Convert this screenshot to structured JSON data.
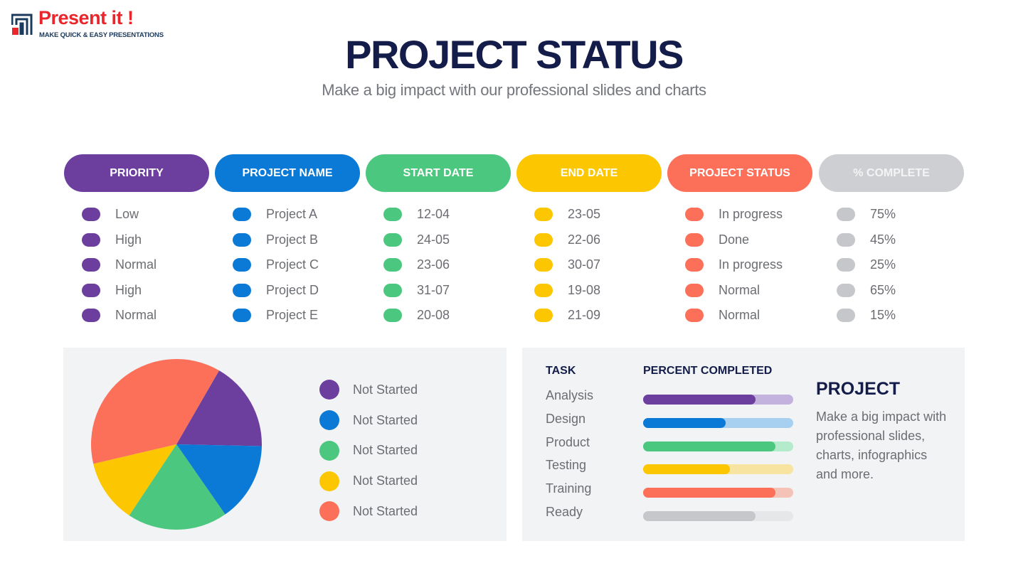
{
  "logo": {
    "title": "Present it !",
    "tagline": "MAKE QUICK & EASY PRESENTATIONS"
  },
  "header": {
    "title": "PROJECT STATUS",
    "subtitle": "Make a big impact with our professional slides and charts"
  },
  "colors": {
    "purple": "#6c3f9f",
    "blue": "#0a7ad6",
    "green": "#4cc77f",
    "yellow": "#fcc700",
    "coral": "#fc705a",
    "gray": "#c5c7ca"
  },
  "table": {
    "columns": [
      {
        "header": "PRIORITY",
        "color": "#6c3f9f",
        "text_color": "#ffffff",
        "items": [
          "Low",
          "High",
          "Normal",
          "High",
          "Normal"
        ]
      },
      {
        "header": "PROJECT NAME",
        "color": "#0a7ad6",
        "text_color": "#ffffff",
        "items": [
          "Project A",
          "Project B",
          "Project C",
          "Project D",
          "Project E"
        ]
      },
      {
        "header": "START DATE",
        "color": "#4cc77f",
        "text_color": "#ffffff",
        "items": [
          "12-04",
          "24-05",
          "23-06",
          "31-07",
          "20-08"
        ]
      },
      {
        "header": "END DATE",
        "color": "#fcc700",
        "text_color": "#ffffff",
        "items": [
          "23-05",
          "22-06",
          "30-07",
          "19-08",
          "21-09"
        ]
      },
      {
        "header": "PROJECT STATUS",
        "color": "#fc705a",
        "text_color": "#ffffff",
        "items": [
          "In progress",
          "Done",
          "In progress",
          "Normal",
          "Normal"
        ]
      },
      {
        "header": "% COMPLETE",
        "color": "#cdcfd2",
        "text_color": "#f4f4f5",
        "items": [
          "75%",
          "45%",
          "25%",
          "65%",
          "15%"
        ]
      }
    ]
  },
  "chart_data": {
    "type": "pie",
    "labels": [
      "Not Started",
      "Not Started",
      "Not Started",
      "Not Started",
      "Not Started"
    ],
    "values": [
      17,
      15,
      19,
      12,
      37
    ],
    "colors": [
      "#6c3f9f",
      "#0a7ad6",
      "#4cc77f",
      "#fcc700",
      "#fc705a"
    ]
  },
  "tasks": {
    "task_header": "TASK",
    "percent_header": "PERCENT COMPLETED",
    "items": [
      {
        "label": "Analysis",
        "percent": 75,
        "fill": "#6c3f9f",
        "track": "#c3b2dd"
      },
      {
        "label": "Design",
        "percent": 55,
        "fill": "#0a7ad6",
        "track": "#a6cff0"
      },
      {
        "label": "Product",
        "percent": 88,
        "fill": "#4cc77f",
        "track": "#b4ebcb"
      },
      {
        "label": "Testing",
        "percent": 58,
        "fill": "#fcc700",
        "track": "#f6e4a0"
      },
      {
        "label": "Training",
        "percent": 88,
        "fill": "#fc705a",
        "track": "#f5c2b8"
      },
      {
        "label": "Ready",
        "percent": 75,
        "fill": "#c5c7ca",
        "track": "#e6e7e9"
      }
    ]
  },
  "project": {
    "title": "PROJECT",
    "text": "Make a big impact with professional slides, charts, infographics and more."
  }
}
